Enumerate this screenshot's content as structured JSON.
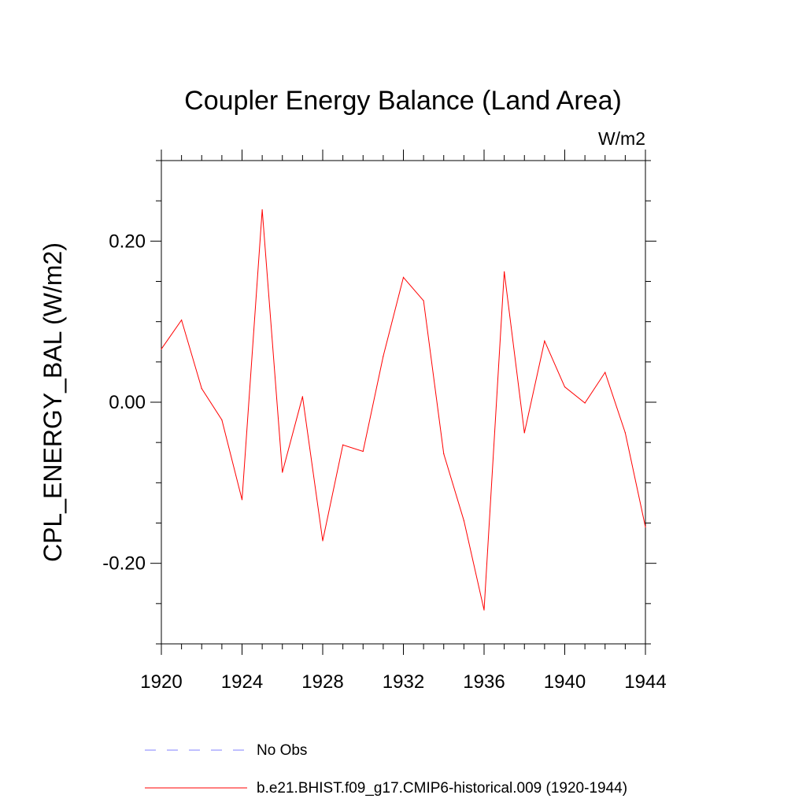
{
  "chart_data": {
    "type": "line",
    "title": "Coupler Energy Balance (Land Area)",
    "units_label": "W/m2",
    "ylabel": "CPL_ENERGY_BAL  (W/m2)",
    "xlabel": "",
    "xlim": [
      1920,
      1944
    ],
    "ylim": [
      -0.3,
      0.3
    ],
    "x_ticks": [
      1920,
      1924,
      1928,
      1932,
      1936,
      1940,
      1944
    ],
    "x_tick_labels": [
      "1920",
      "1924",
      "1928",
      "1932",
      "1936",
      "1940",
      "1944"
    ],
    "y_ticks": [
      -0.2,
      0.0,
      0.2
    ],
    "y_tick_labels": [
      "-0.20",
      "0.00",
      "0.20"
    ],
    "grid": false,
    "legend_placement": "bottom",
    "series": [
      {
        "name": "b.e21.BHIST.f09_g17.CMIP6-historical.009 (1920-1944)",
        "color": "#ff0000",
        "style": "solid",
        "x": [
          1920,
          1921,
          1922,
          1923,
          1924,
          1925,
          1926,
          1927,
          1928,
          1929,
          1930,
          1931,
          1932,
          1933,
          1934,
          1935,
          1936,
          1937,
          1938,
          1939,
          1940,
          1941,
          1942,
          1943,
          1944
        ],
        "y": [
          0.066,
          0.102,
          0.017,
          -0.022,
          -0.121,
          0.239,
          -0.087,
          0.007,
          -0.172,
          -0.053,
          -0.061,
          0.057,
          0.155,
          0.126,
          -0.064,
          -0.147,
          -0.258,
          0.162,
          -0.038,
          0.076,
          0.019,
          -0.001,
          0.037,
          -0.038,
          -0.155
        ]
      }
    ],
    "legend": [
      {
        "label": "No Obs",
        "color": "#8080ff",
        "style": "dashed"
      },
      {
        "label": "b.e21.BHIST.f09_g17.CMIP6-historical.009 (1920-1944)",
        "color": "#ff0000",
        "style": "solid"
      }
    ]
  }
}
